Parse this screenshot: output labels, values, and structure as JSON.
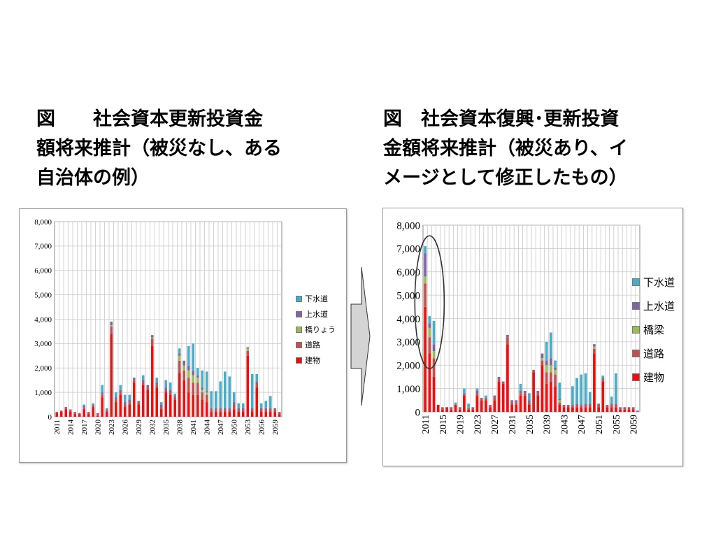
{
  "titles": {
    "left": [
      "図　　社会資本更新投資金",
      "額将来推計（被災なし、ある",
      "自治体の例）"
    ],
    "right": [
      "図　社会資本復興･更新投資",
      "金額将来推計（被災あり、イ",
      "メージとして修正したもの）"
    ]
  },
  "colors": {
    "sewer": "#4bacc6",
    "water": "#8064a2",
    "bridge": "#9bbb59",
    "road": "#c0504d",
    "building": "#e81010"
  },
  "chart_data": [
    {
      "type": "bar",
      "stacked": true,
      "ylim": [
        0,
        8000
      ],
      "yticks": [
        "0",
        "1,000",
        "2,000",
        "3,000",
        "4,000",
        "5,000",
        "6,000",
        "7,000",
        "8,000"
      ],
      "x_start": 2011,
      "x_end": 2060,
      "x_tick_labels": [
        "2011",
        "2014",
        "2017",
        "2020",
        "2023",
        "2026",
        "2029",
        "2032",
        "2035",
        "2038",
        "2041",
        "2044",
        "2047",
        "2050",
        "2053",
        "2056",
        "2059"
      ],
      "legend": [
        "下水道",
        "上水道",
        "橋りょう",
        "道路",
        "建物"
      ],
      "legend_placement": "right",
      "grid": true,
      "series": [
        {
          "name": "建物",
          "color_key": "building",
          "values": [
            150,
            200,
            300,
            200,
            100,
            100,
            300,
            100,
            400,
            50,
            800,
            200,
            3400,
            600,
            900,
            400,
            500,
            1400,
            500,
            1300,
            1100,
            2900,
            1200,
            300,
            1000,
            900,
            700,
            1800,
            1500,
            1000,
            900,
            900,
            700,
            600,
            200,
            200,
            200,
            200,
            200,
            300,
            200,
            200,
            2500,
            200,
            1200,
            200,
            200,
            200,
            200,
            100
          ]
        },
        {
          "name": "道路",
          "color_key": "road",
          "values": [
            50,
            50,
            50,
            50,
            50,
            50,
            50,
            50,
            50,
            50,
            100,
            50,
            300,
            100,
            100,
            100,
            100,
            100,
            100,
            100,
            100,
            300,
            100,
            100,
            100,
            100,
            100,
            500,
            400,
            600,
            500,
            500,
            300,
            300,
            100,
            100,
            100,
            100,
            100,
            200,
            100,
            100,
            200,
            100,
            200,
            100,
            100,
            100,
            100,
            50
          ]
        },
        {
          "name": "橋りょう",
          "color_key": "bridge",
          "values": [
            0,
            0,
            0,
            0,
            0,
            0,
            0,
            0,
            0,
            0,
            0,
            0,
            50,
            0,
            0,
            0,
            0,
            0,
            0,
            0,
            0,
            50,
            0,
            0,
            0,
            0,
            0,
            200,
            200,
            300,
            300,
            200,
            100,
            100,
            0,
            0,
            0,
            0,
            0,
            0,
            0,
            0,
            100,
            0,
            0,
            0,
            0,
            0,
            0,
            0
          ]
        },
        {
          "name": "上水道",
          "color_key": "water",
          "values": [
            0,
            0,
            50,
            50,
            50,
            0,
            100,
            50,
            50,
            50,
            100,
            50,
            150,
            100,
            100,
            100,
            100,
            100,
            50,
            100,
            100,
            100,
            100,
            100,
            100,
            100,
            50,
            100,
            200,
            200,
            200,
            100,
            100,
            50,
            50,
            50,
            50,
            50,
            50,
            100,
            50,
            50,
            50,
            50,
            50,
            50,
            50,
            50,
            50,
            50
          ]
        },
        {
          "name": "下水道",
          "color_key": "sewer",
          "values": [
            0,
            0,
            0,
            0,
            0,
            0,
            50,
            0,
            50,
            0,
            300,
            50,
            0,
            200,
            200,
            300,
            200,
            0,
            0,
            200,
            0,
            0,
            200,
            100,
            300,
            300,
            100,
            200,
            0,
            800,
            1100,
            300,
            700,
            800,
            700,
            700,
            1100,
            1500,
            1300,
            400,
            200,
            200,
            0,
            1400,
            300,
            200,
            300,
            500,
            0,
            0
          ]
        }
      ]
    },
    {
      "type": "bar",
      "stacked": true,
      "ylim": [
        0,
        8000
      ],
      "yticks": [
        "0",
        "1,000",
        "2,000",
        "3,000",
        "4,000",
        "5,000",
        "6,000",
        "7,000",
        "8,000"
      ],
      "x_start": 2011,
      "x_end": 2060,
      "x_tick_labels": [
        "2011",
        "2015",
        "2019",
        "2023",
        "2027",
        "2031",
        "2035",
        "2039",
        "2043",
        "2047",
        "2051",
        "2055",
        "2059"
      ],
      "legend": [
        "下水道",
        "上水道",
        "橋梁",
        "道路",
        "建物"
      ],
      "legend_placement": "right",
      "grid": true,
      "annotation": "ellipse around 2011–2013",
      "series": [
        {
          "name": "建物",
          "color_key": "building",
          "values": [
            4500,
            2500,
            1500,
            300,
            100,
            200,
            100,
            300,
            100,
            700,
            100,
            100,
            700,
            500,
            500,
            200,
            500,
            1300,
            1200,
            2900,
            300,
            300,
            700,
            700,
            300,
            1700,
            700,
            2000,
            1200,
            1300,
            1100,
            300,
            200,
            200,
            200,
            200,
            200,
            200,
            200,
            2500,
            200,
            1300,
            200,
            200,
            200,
            100,
            100,
            100,
            100,
            0
          ]
        },
        {
          "name": "道路",
          "color_key": "road",
          "values": [
            1000,
            700,
            800,
            0,
            50,
            0,
            50,
            0,
            50,
            50,
            50,
            50,
            100,
            50,
            50,
            50,
            100,
            100,
            100,
            300,
            100,
            100,
            100,
            100,
            100,
            100,
            100,
            200,
            500,
            400,
            500,
            100,
            50,
            50,
            50,
            100,
            50,
            100,
            100,
            200,
            100,
            100,
            50,
            100,
            100,
            50,
            50,
            50,
            50,
            0
          ]
        },
        {
          "name": "橋梁",
          "color_key": "bridge",
          "values": [
            300,
            400,
            300,
            0,
            0,
            0,
            0,
            0,
            0,
            0,
            0,
            0,
            0,
            0,
            0,
            0,
            0,
            0,
            0,
            0,
            0,
            0,
            0,
            0,
            0,
            0,
            0,
            100,
            300,
            300,
            200,
            100,
            0,
            0,
            0,
            0,
            0,
            0,
            0,
            100,
            0,
            0,
            0,
            0,
            0,
            0,
            0,
            0,
            0,
            0
          ]
        },
        {
          "name": "上水道",
          "color_key": "water",
          "values": [
            1000,
            200,
            300,
            0,
            50,
            0,
            50,
            0,
            50,
            50,
            0,
            50,
            100,
            50,
            50,
            50,
            100,
            100,
            0,
            100,
            100,
            100,
            100,
            100,
            100,
            0,
            100,
            200,
            200,
            300,
            100,
            50,
            50,
            50,
            50,
            50,
            50,
            50,
            50,
            100,
            50,
            50,
            50,
            50,
            50,
            50,
            50,
            50,
            50,
            50
          ]
        },
        {
          "name": "下水道",
          "color_key": "sewer",
          "values": [
            300,
            300,
            1000,
            0,
            0,
            0,
            0,
            100,
            0,
            200,
            200,
            0,
            100,
            0,
            100,
            0,
            0,
            0,
            0,
            0,
            0,
            0,
            300,
            0,
            300,
            0,
            0,
            0,
            800,
            1100,
            300,
            700,
            0,
            0,
            800,
            1100,
            1300,
            1300,
            500,
            0,
            0,
            100,
            0,
            300,
            1300,
            0,
            0,
            0,
            0,
            0
          ]
        }
      ]
    }
  ],
  "legend_left": [
    {
      "label": "下水道",
      "color_key": "sewer"
    },
    {
      "label": "上水道",
      "color_key": "water"
    },
    {
      "label": "橋りょう",
      "color_key": "bridge"
    },
    {
      "label": "道路",
      "color_key": "road"
    },
    {
      "label": "建物",
      "color_key": "building"
    }
  ],
  "legend_right": [
    {
      "label": "下水道",
      "color_key": "sewer"
    },
    {
      "label": "上水道",
      "color_key": "water"
    },
    {
      "label": "橋梁",
      "color_key": "bridge"
    },
    {
      "label": "道路",
      "color_key": "road"
    },
    {
      "label": "建物",
      "color_key": "building"
    }
  ]
}
